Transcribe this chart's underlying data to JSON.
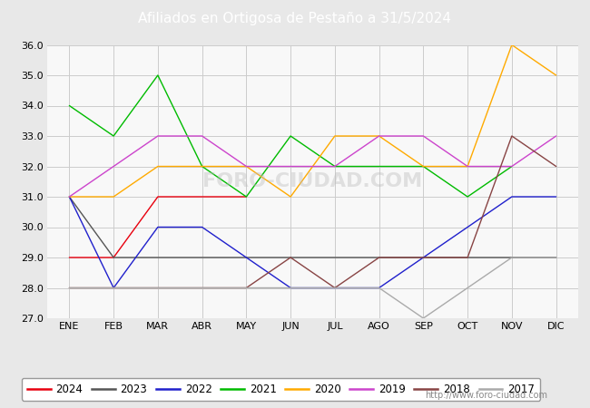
{
  "title": "Afiliados en Ortigosa de Pestaño a 31/5/2024",
  "months": [
    "ENE",
    "FEB",
    "MAR",
    "ABR",
    "MAY",
    "JUN",
    "JUL",
    "AGO",
    "SEP",
    "OCT",
    "NOV",
    "DIC"
  ],
  "series": {
    "2024": [
      29,
      29,
      31,
      31,
      31,
      null,
      null,
      null,
      null,
      null,
      null,
      null
    ],
    "2023": [
      31,
      29,
      29,
      29,
      29,
      29,
      29,
      29,
      29,
      29,
      29,
      29
    ],
    "2022": [
      31,
      28,
      30,
      30,
      29,
      28,
      28,
      28,
      29,
      30,
      31,
      31
    ],
    "2021": [
      34,
      33,
      35,
      32,
      31,
      33,
      32,
      32,
      32,
      31,
      32,
      null
    ],
    "2020": [
      31,
      31,
      32,
      32,
      32,
      31,
      33,
      33,
      32,
      32,
      36,
      35
    ],
    "2019": [
      31,
      32,
      33,
      33,
      32,
      32,
      32,
      33,
      33,
      32,
      32,
      33
    ],
    "2018": [
      28,
      28,
      28,
      28,
      28,
      29,
      28,
      29,
      29,
      29,
      33,
      32
    ],
    "2017": [
      28,
      28,
      28,
      28,
      28,
      28,
      28,
      28,
      27,
      28,
      29,
      29
    ]
  },
  "colors": {
    "2024": "#e8000e",
    "2023": "#555555",
    "2022": "#2020cc",
    "2021": "#00bb00",
    "2020": "#ffaa00",
    "2019": "#cc44cc",
    "2018": "#884444",
    "2017": "#aaaaaa"
  },
  "ylim": [
    27.0,
    36.0
  ],
  "yticks": [
    27.0,
    28.0,
    29.0,
    30.0,
    31.0,
    32.0,
    33.0,
    34.0,
    35.0,
    36.0
  ],
  "bg_color": "#e8e8e8",
  "plot_bg_color": "#f8f8f8",
  "title_bg_color": "#5b9bd5",
  "title_color": "#ffffff",
  "watermark": "http://www.foro-ciudad.com",
  "legend_order": [
    "2024",
    "2023",
    "2022",
    "2021",
    "2020",
    "2019",
    "2018",
    "2017"
  ]
}
